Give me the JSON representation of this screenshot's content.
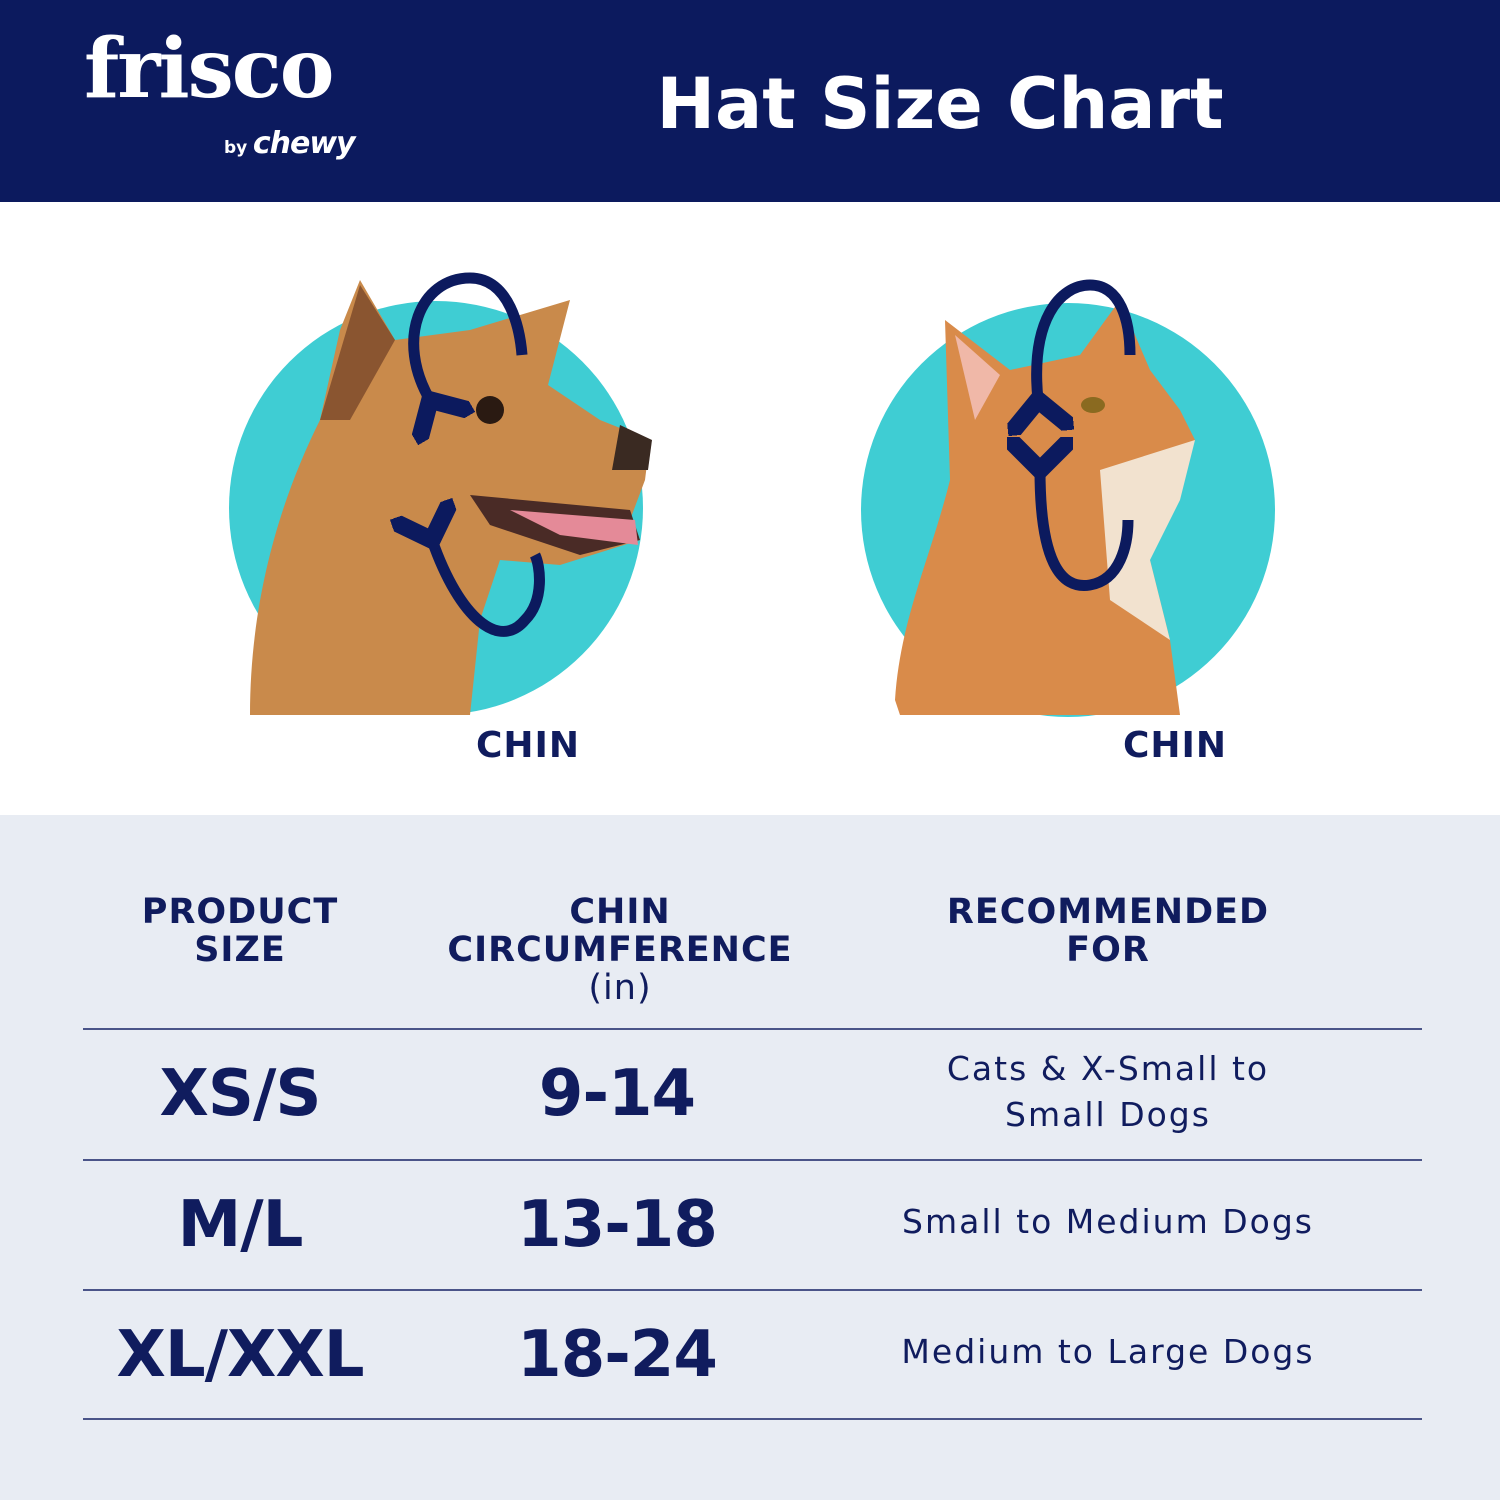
{
  "header": {
    "logo": {
      "brand": "frisco",
      "by": "by",
      "parent": "chewy"
    },
    "title": "Hat Size Chart"
  },
  "illustration": {
    "dog_label": "CHIN",
    "cat_label": "CHIN",
    "circle_color": "#3fcdd3",
    "arrow_color": "#0c1a5e"
  },
  "table": {
    "headers": [
      {
        "line1": "PRODUCT",
        "line2": "SIZE"
      },
      {
        "line1": "CHIN",
        "line2": "CIRCUMFERENCE",
        "unit": "(in)"
      },
      {
        "line1": "RECOMMENDED",
        "line2": "FOR"
      }
    ],
    "rows": [
      {
        "size": "XS/S",
        "range": "9-14",
        "recommended_line1": "Cats & X-Small to",
        "recommended_line2": "Small Dogs"
      },
      {
        "size": "M/L",
        "range": "13-18",
        "recommended_line1": "Small to Medium Dogs",
        "recommended_line2": ""
      },
      {
        "size": "XL/XXL",
        "range": "18-24",
        "recommended_line1": "Medium to Large Dogs",
        "recommended_line2": ""
      }
    ]
  },
  "colors": {
    "navy": "#0c1a5e",
    "teal": "#3fcdd3",
    "table_bg": "#e8ecf3"
  }
}
